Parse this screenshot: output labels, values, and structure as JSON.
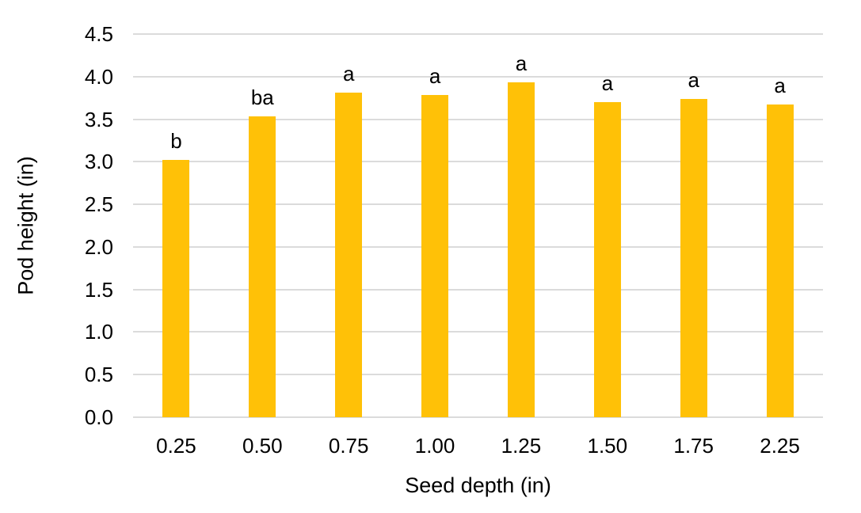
{
  "chart_data": {
    "type": "bar",
    "title": "",
    "xlabel": "Seed depth (in)",
    "ylabel": "Pod height (in)",
    "categories": [
      "0.25",
      "0.50",
      "0.75",
      "1.00",
      "1.25",
      "1.50",
      "1.75",
      "2.25"
    ],
    "values": [
      3.02,
      3.53,
      3.81,
      3.78,
      3.93,
      3.7,
      3.74,
      3.67
    ],
    "bar_labels": [
      "b",
      "ba",
      "a",
      "a",
      "a",
      "a",
      "a",
      "a"
    ],
    "ylim": [
      0,
      4.5
    ],
    "y_ticks": [
      "0.0",
      "0.5",
      "1.0",
      "1.5",
      "2.0",
      "2.5",
      "3.0",
      "3.5",
      "4.0",
      "4.5"
    ],
    "grid": "horizontal-only",
    "legend": "none",
    "colors": {
      "bar": "#FFC107",
      "gridline": "#DBDBDB",
      "text": "#000000",
      "background": "#FFFFFF"
    }
  }
}
